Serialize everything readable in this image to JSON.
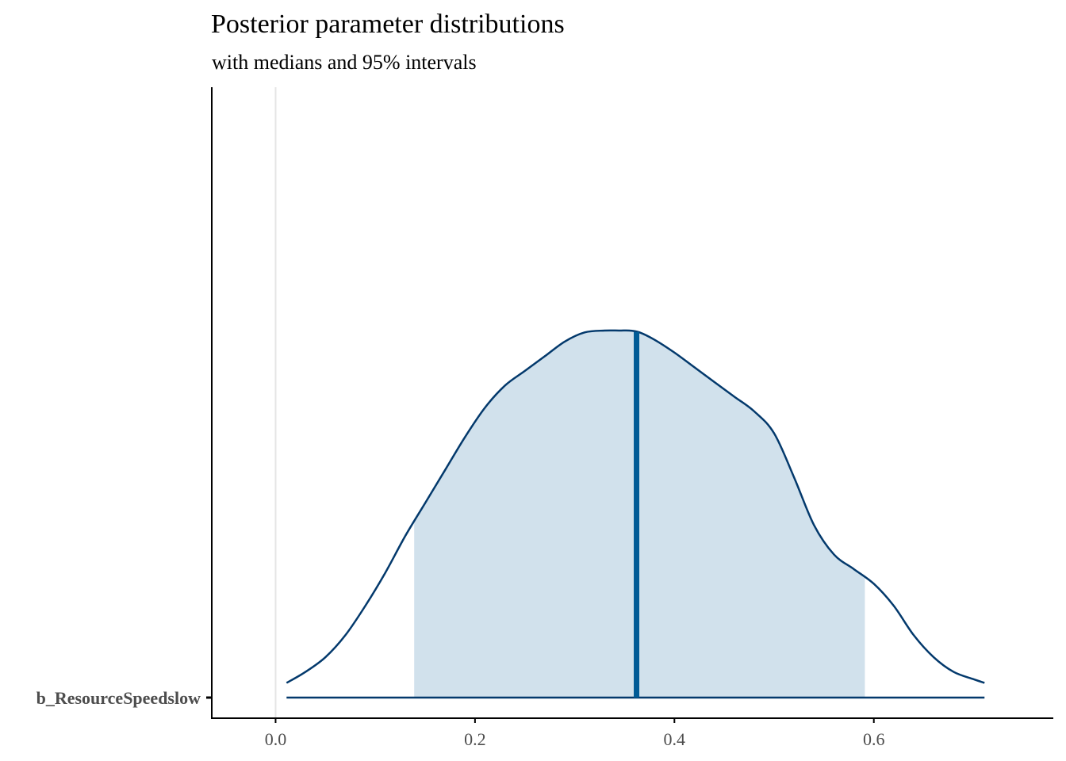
{
  "chart_data": {
    "type": "area",
    "title": "Posterior parameter distributions",
    "subtitle": "with medians and 95% intervals",
    "xlabel": "",
    "ylabel": "",
    "xlim": [
      -0.064,
      0.78
    ],
    "x_ticks": [
      {
        "value": 0.0,
        "label": "0.0"
      },
      {
        "value": 0.2,
        "label": "0.2"
      },
      {
        "value": 0.4,
        "label": "0.4"
      },
      {
        "value": 0.6,
        "label": "0.6"
      }
    ],
    "reference_line": 0.0,
    "grid": false,
    "legend": "none",
    "parameters": [
      {
        "label": "b_ResourceSpeedslow",
        "median": 0.362,
        "interval_95": [
          0.139,
          0.591
        ],
        "range": [
          0.011,
          0.711
        ],
        "density": {
          "x": [
            0.011,
            0.03,
            0.05,
            0.07,
            0.09,
            0.11,
            0.13,
            0.15,
            0.17,
            0.19,
            0.21,
            0.23,
            0.25,
            0.27,
            0.29,
            0.31,
            0.33,
            0.345,
            0.355,
            0.365,
            0.38,
            0.4,
            0.42,
            0.44,
            0.46,
            0.48,
            0.5,
            0.52,
            0.54,
            0.56,
            0.58,
            0.6,
            0.62,
            0.64,
            0.66,
            0.68,
            0.7,
            0.711
          ],
          "y": [
            0.04,
            0.07,
            0.11,
            0.17,
            0.25,
            0.34,
            0.44,
            0.53,
            0.62,
            0.71,
            0.79,
            0.85,
            0.89,
            0.93,
            0.97,
            0.995,
            1.0,
            1.0,
            1.0,
            0.995,
            0.975,
            0.94,
            0.9,
            0.86,
            0.82,
            0.78,
            0.72,
            0.6,
            0.47,
            0.39,
            0.35,
            0.31,
            0.25,
            0.17,
            0.11,
            0.07,
            0.05,
            0.04
          ]
        }
      }
    ],
    "colors": {
      "outline": "#03396c",
      "interval_fill": "#d1e1ec",
      "median": "#005b96",
      "reference": "#e5e5e5",
      "axis": "#000000",
      "tick_label": "#4d4d4d"
    }
  }
}
